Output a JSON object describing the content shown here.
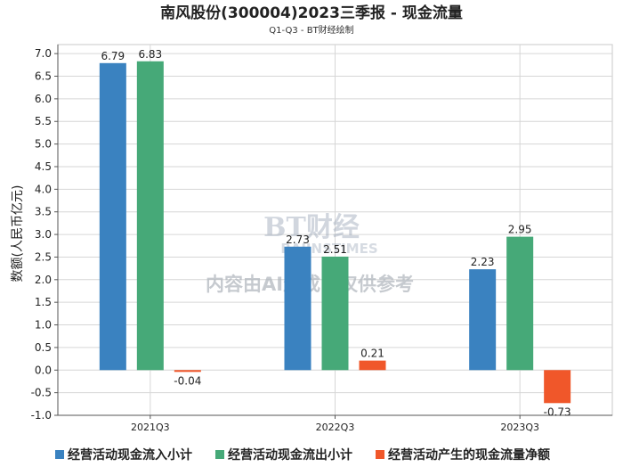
{
  "chart_data": {
    "type": "bar",
    "title": "南风股份(300004)2023三季报 - 现金流量",
    "subtitle": "Q1-Q3 - BT财经绘制",
    "xlabel": "",
    "ylabel": "数额(人民币亿元)",
    "categories": [
      "2021Q3",
      "2022Q3",
      "2023Q3"
    ],
    "series": [
      {
        "name": "经营活动现金流入小计",
        "color": "#3a82c0",
        "values": [
          6.79,
          2.73,
          2.23
        ],
        "labels": [
          "6.79",
          "2.73",
          "2.23"
        ]
      },
      {
        "name": "经营活动现金流出小计",
        "color": "#46a978",
        "values": [
          6.83,
          2.51,
          2.95
        ],
        "labels": [
          "6.83",
          "2.51",
          "2.95"
        ]
      },
      {
        "name": "经营活动产生的现金流量净额",
        "color": "#f0572a",
        "values": [
          -0.04,
          0.21,
          -0.73
        ],
        "labels": [
          "-0.04",
          "0.21",
          "-0.73"
        ]
      }
    ],
    "yticks": [
      "-1.0",
      "-0.5",
      "0.0",
      "0.5",
      "1.0",
      "1.5",
      "2.0",
      "2.5",
      "3.0",
      "3.5",
      "4.0",
      "4.5",
      "5.0",
      "5.5",
      "6.0",
      "6.5",
      "7.0"
    ],
    "ylim": [
      -1.0,
      7.2
    ],
    "grid": true,
    "legend_position": "bottom"
  },
  "watermark": {
    "logo": "BT财经",
    "sub": "BAIINSTIMES",
    "text": "内容由AI生成，仅供参考"
  }
}
